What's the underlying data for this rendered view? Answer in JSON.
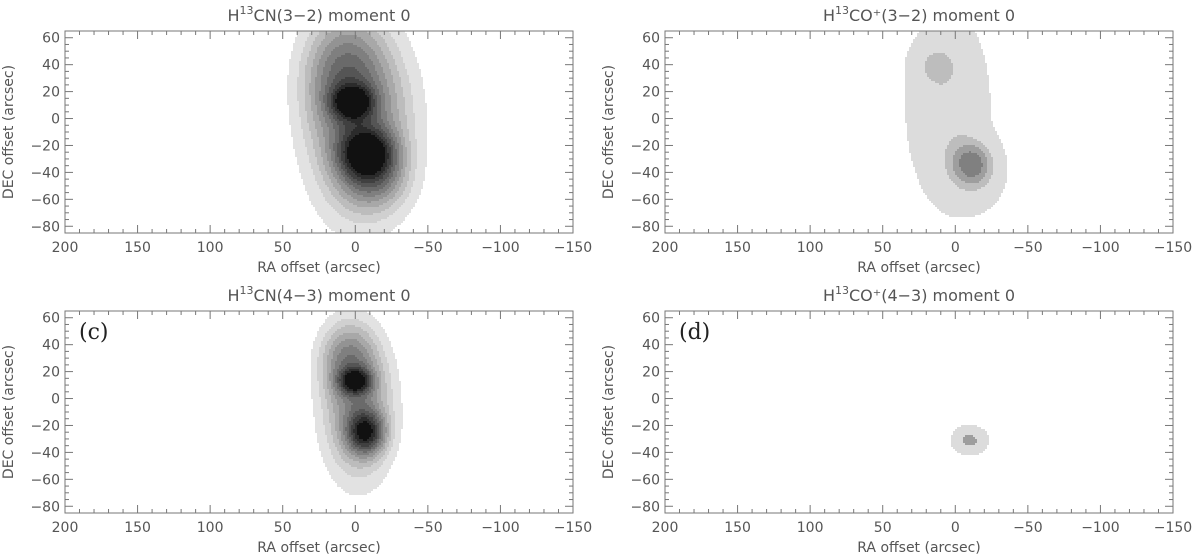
{
  "chart_data": [
    {
      "type": "contour",
      "title": {
        "prefix": "H",
        "sup": "13",
        "suffix": "CN(3−2) moment 0"
      },
      "panel_label": "",
      "xlabel": "RA offset (arcsec)",
      "ylabel": "DEC offset (arcsec)",
      "xlim": [
        200,
        -150
      ],
      "ylim": [
        -85,
        65
      ],
      "xticks": [
        200,
        150,
        100,
        50,
        0,
        -50,
        -100,
        -150
      ],
      "yticks": [
        60,
        40,
        20,
        0,
        -20,
        -40,
        -60,
        -80
      ],
      "color_map": [
        "#e2e2e2",
        "#d0d0d0",
        "#bcbcbc",
        "#a8a8a8",
        "#939393",
        "#7f7f7f",
        "#6a6a6a",
        "#555555",
        "#404040",
        "#2b2b2b",
        "#111111"
      ],
      "peaks": [
        {
          "ra": 2,
          "dec": 12,
          "amp": 1.0,
          "sx": 9,
          "sy": 8
        },
        {
          "ra": -8,
          "dec": -26,
          "amp": 1.15,
          "sx": 12,
          "sy": 12
        },
        {
          "ra": 8,
          "dec": 32,
          "amp": 0.45,
          "sx": 17,
          "sy": 28
        },
        {
          "ra": -12,
          "dec": -45,
          "amp": 0.35,
          "sx": 14,
          "sy": 14
        },
        {
          "ra": -4,
          "dec": -5,
          "amp": 0.5,
          "sx": 22,
          "sy": 42
        }
      ],
      "levels": [
        0.06,
        0.13,
        0.2,
        0.28,
        0.37,
        0.47,
        0.58,
        0.7,
        0.83,
        0.97,
        1.12
      ]
    },
    {
      "type": "contour",
      "title": {
        "prefix": "H",
        "sup": "13",
        "suffix": "CO⁺(3−2) moment 0"
      },
      "panel_label": "",
      "xlabel": "RA offset (arcsec)",
      "ylabel": "DEC offset (arcsec)",
      "xlim": [
        200,
        -150
      ],
      "ylim": [
        -85,
        65
      ],
      "xticks": [
        200,
        150,
        100,
        50,
        0,
        -50,
        -100,
        -150
      ],
      "yticks": [
        60,
        40,
        20,
        0,
        -20,
        -40,
        -60,
        -80
      ],
      "color_map": [
        "#dcdcdc",
        "#bdbdbd",
        "#9e9e9e",
        "#808080"
      ],
      "peaks": [
        {
          "ra": 5,
          "dec": 8,
          "amp": 0.35,
          "sx": 20,
          "sy": 50
        },
        {
          "ra": 14,
          "dec": 40,
          "amp": 0.25,
          "sx": 10,
          "sy": 10
        },
        {
          "ra": -12,
          "dec": -33,
          "amp": 0.55,
          "sx": 11,
          "sy": 12
        },
        {
          "ra": -15,
          "dec": -48,
          "amp": 0.18,
          "sx": 14,
          "sy": 16
        }
      ],
      "levels": [
        0.12,
        0.4,
        0.55,
        0.7
      ]
    },
    {
      "type": "contour",
      "title": {
        "prefix": "H",
        "sup": "13",
        "suffix": "CN(4−3) moment 0"
      },
      "panel_label": "(c)",
      "xlabel": "RA offset (arcsec)",
      "ylabel": "DEC offset (arcsec)",
      "xlim": [
        200,
        -150
      ],
      "ylim": [
        -85,
        65
      ],
      "xticks": [
        200,
        150,
        100,
        50,
        0,
        -50,
        -100,
        -150
      ],
      "yticks": [
        60,
        40,
        20,
        0,
        -20,
        -40,
        -60,
        -80
      ],
      "color_map": [
        "#e2e2e2",
        "#d0d0d0",
        "#bcbcbc",
        "#a8a8a8",
        "#939393",
        "#7f7f7f",
        "#6a6a6a",
        "#555555",
        "#404040",
        "#2b2b2b",
        "#111111"
      ],
      "peaks": [
        {
          "ra": 0,
          "dec": 13,
          "amp": 1.0,
          "sx": 7,
          "sy": 6
        },
        {
          "ra": -7,
          "dec": -25,
          "amp": 0.95,
          "sx": 8,
          "sy": 10
        },
        {
          "ra": 5,
          "dec": 28,
          "amp": 0.4,
          "sx": 12,
          "sy": 18
        },
        {
          "ra": -2,
          "dec": -8,
          "amp": 0.45,
          "sx": 15,
          "sy": 32
        }
      ],
      "levels": [
        0.06,
        0.13,
        0.2,
        0.28,
        0.37,
        0.47,
        0.58,
        0.7,
        0.83,
        0.97,
        1.12
      ]
    },
    {
      "type": "contour",
      "title": {
        "prefix": "H",
        "sup": "13",
        "suffix": "CO⁺(4−3) moment 0"
      },
      "panel_label": "(d)",
      "xlabel": "RA offset (arcsec)",
      "ylabel": "DEC offset (arcsec)",
      "xlim": [
        200,
        -150
      ],
      "ylim": [
        -85,
        65
      ],
      "xticks": [
        200,
        150,
        100,
        50,
        0,
        -50,
        -100,
        -150
      ],
      "yticks": [
        60,
        40,
        20,
        0,
        -20,
        -40,
        -60,
        -80
      ],
      "color_map": [
        "#dcdcdc",
        "#9e9e9e"
      ],
      "peaks": [
        {
          "ra": -10,
          "dec": -31,
          "amp": 1.0,
          "sx": 8,
          "sy": 7
        }
      ],
      "levels": [
        0.25,
        0.85
      ]
    }
  ]
}
